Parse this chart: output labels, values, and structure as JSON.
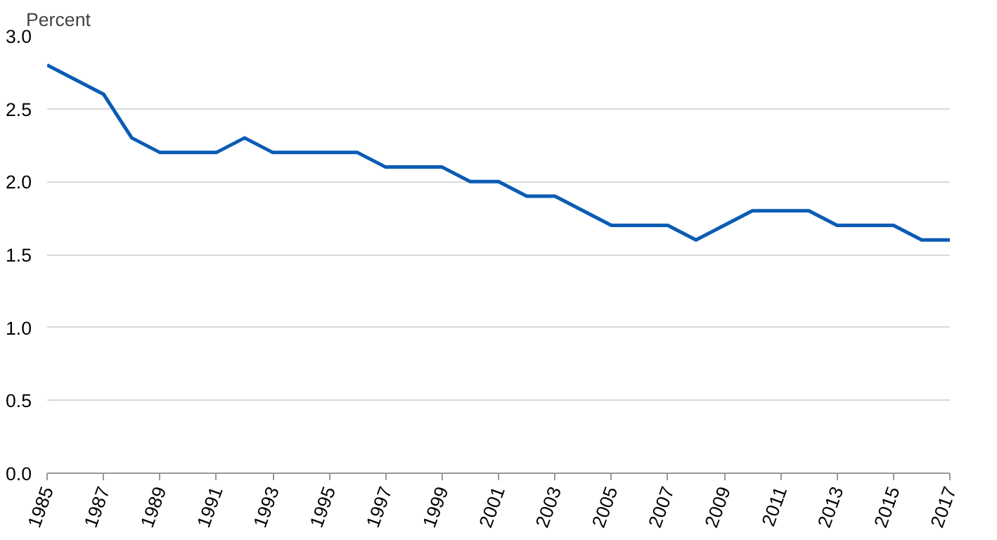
{
  "chart_data": {
    "type": "line",
    "ylabel": "Percent",
    "x": [
      1985,
      1986,
      1987,
      1988,
      1989,
      1990,
      1991,
      1992,
      1993,
      1994,
      1995,
      1996,
      1997,
      1998,
      1999,
      2000,
      2001,
      2002,
      2003,
      2004,
      2005,
      2006,
      2007,
      2008,
      2009,
      2010,
      2011,
      2012,
      2013,
      2014,
      2015,
      2016,
      2017
    ],
    "series": [
      {
        "color": "#0a5cb4",
        "values": [
          2.8,
          2.7,
          2.6,
          2.3,
          2.2,
          2.2,
          2.2,
          2.3,
          2.2,
          2.2,
          2.2,
          2.2,
          2.1,
          2.1,
          2.1,
          2.0,
          2.0,
          1.9,
          1.9,
          1.8,
          1.7,
          1.7,
          1.7,
          1.6,
          1.7,
          1.8,
          1.8,
          1.8,
          1.7,
          1.7,
          1.7,
          1.6,
          1.6
        ]
      }
    ],
    "xlim": [
      1985,
      2017
    ],
    "xticks": [
      1985,
      1987,
      1989,
      1991,
      1993,
      1995,
      1997,
      1999,
      2001,
      2003,
      2005,
      2007,
      2009,
      2011,
      2013,
      2015,
      2017
    ],
    "ylim": [
      0,
      3.0
    ],
    "yticks": [
      {
        "value": 0,
        "label": "0.0"
      },
      {
        "value": 0.5,
        "label": "0.5"
      },
      {
        "value": 1.0,
        "label": "1.0"
      },
      {
        "value": 1.5,
        "label": "1.5"
      },
      {
        "value": 2.0,
        "label": "2.0"
      },
      {
        "value": 2.5,
        "label": "2.5"
      },
      {
        "value": 3.0,
        "label": "3.0"
      }
    ],
    "grid": "y",
    "marker": "none",
    "line_style": "solid"
  }
}
